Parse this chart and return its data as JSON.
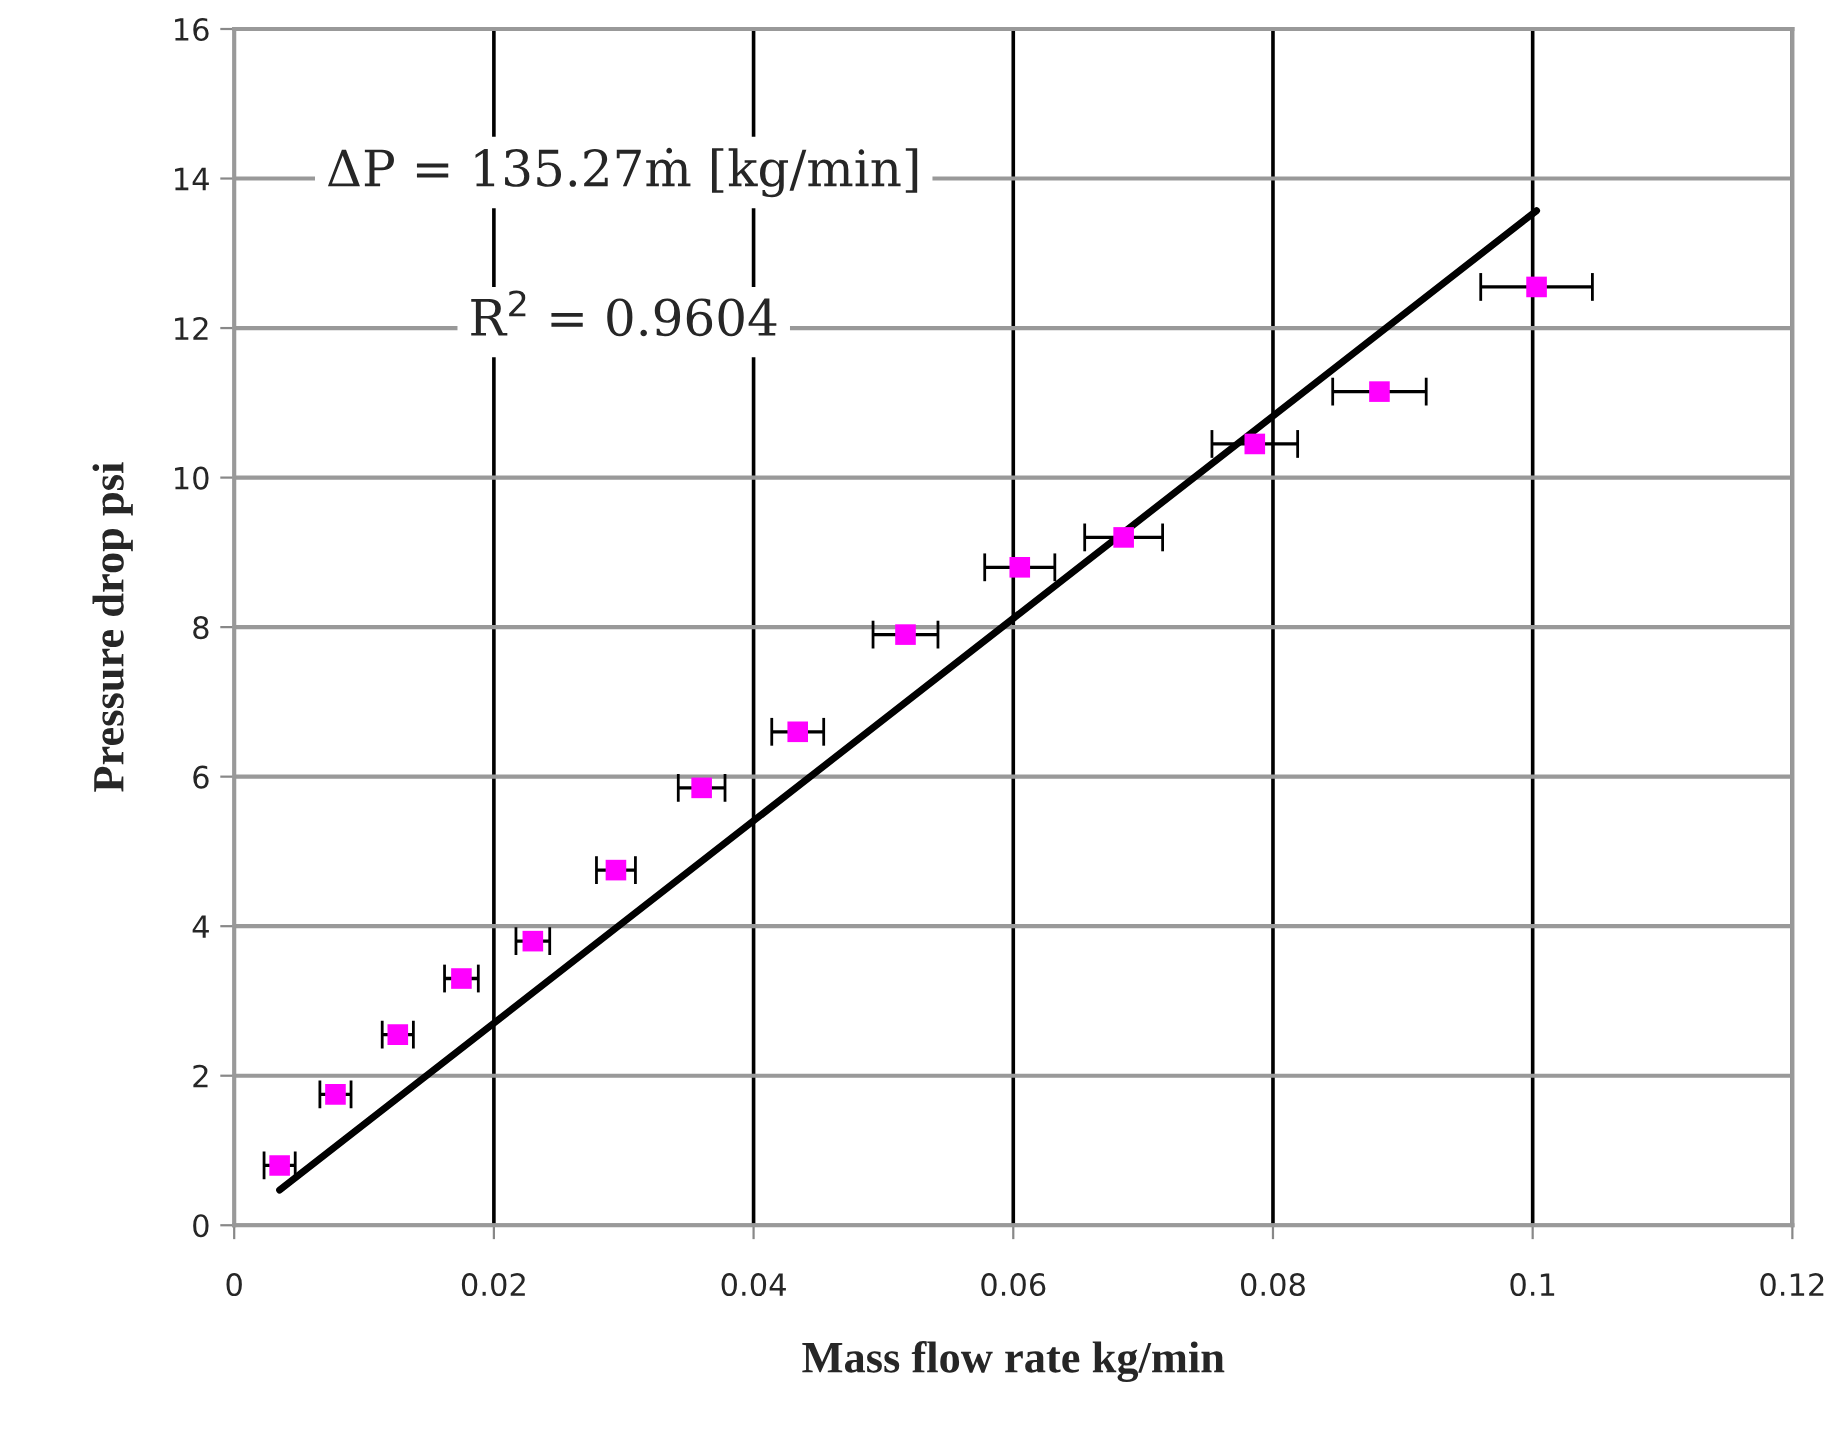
{
  "chart_data": {
    "type": "scatter",
    "xlabel": "Mass flow rate kg/min",
    "ylabel": "Pressure drop psi",
    "xlim": [
      0,
      0.12
    ],
    "xticks": [
      0,
      0.02,
      0.04,
      0.06,
      0.08,
      0.1,
      0.12
    ],
    "ylim": [
      0,
      16
    ],
    "yticks": [
      0,
      2,
      4,
      6,
      8,
      10,
      12,
      14,
      16
    ],
    "grid": true,
    "series": [
      {
        "marker": "square",
        "color": "#ff00ff",
        "x": [
          0.0035,
          0.0078,
          0.0126,
          0.0175,
          0.023,
          0.0294,
          0.036,
          0.0434,
          0.0517,
          0.0605,
          0.0685,
          0.0786,
          0.0882,
          0.1003
        ],
        "values": [
          0.8,
          1.75,
          2.55,
          3.3,
          3.8,
          4.75,
          5.85,
          6.6,
          7.9,
          8.8,
          9.2,
          10.45,
          11.15,
          12.55
        ],
        "xerrors": [
          0.0012,
          0.0012,
          0.0012,
          0.0013,
          0.0013,
          0.0015,
          0.0018,
          0.002,
          0.0025,
          0.0027,
          0.003,
          0.0033,
          0.0036,
          0.0043
        ]
      },
      {
        "type": "line",
        "color": "#000000",
        "x": [
          0.0035,
          0.1003
        ],
        "values": [
          0.47,
          13.57
        ]
      }
    ],
    "annotations": [
      "ΔP = 135.27ṁ [kg/min]",
      "R$^{2}$ = 0.9604"
    ]
  }
}
